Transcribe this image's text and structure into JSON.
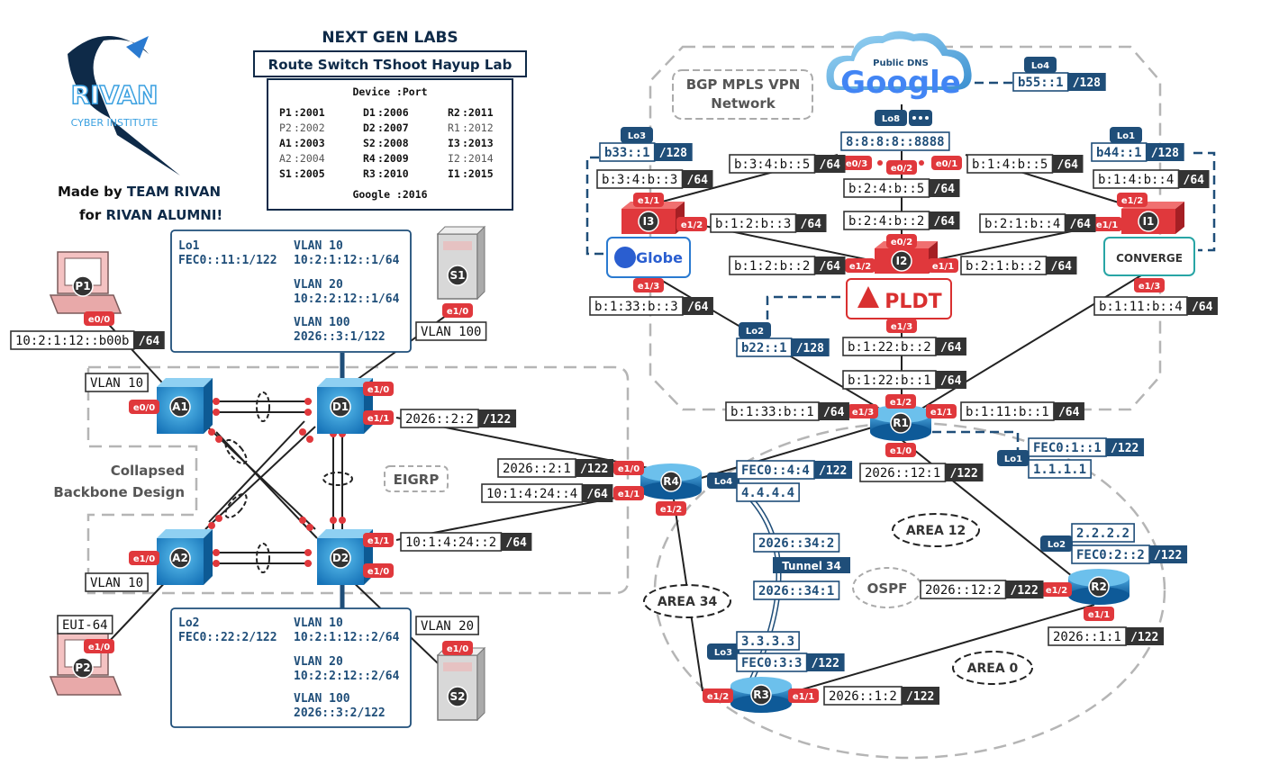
{
  "header": {
    "brand": "RIVAN",
    "brand_sub": "CYBER INSTITUTE",
    "lab_title": "NEXT GEN LABS",
    "lab_subtitle": "Route Switch TShoot Hayup Lab",
    "made_by_prefix": "Made by ",
    "made_by_team": "TEAM RIVAN",
    "for_prefix": "for ",
    "for_alumni": "RIVAN ALUMNI!"
  },
  "port_table": {
    "header": "Device :Port",
    "entries": [
      {
        "device": "P1",
        "port": ":2001"
      },
      {
        "device": "D1",
        "port": ":2006"
      },
      {
        "device": "R2",
        "port": ":2011"
      },
      {
        "device": "P2",
        "port": ":2002"
      },
      {
        "device": "D2",
        "port": ":2007"
      },
      {
        "device": "R1",
        "port": ":2012"
      },
      {
        "device": "A1",
        "port": ":2003"
      },
      {
        "device": "S2",
        "port": ":2008"
      },
      {
        "device": "I3",
        "port": ":2013"
      },
      {
        "device": "A2",
        "port": ":2004"
      },
      {
        "device": "R4",
        "port": ":2009"
      },
      {
        "device": "I2",
        "port": ":2014"
      },
      {
        "device": "S1",
        "port": ":2005"
      },
      {
        "device": "R3",
        "port": ":2010"
      },
      {
        "device": "I1",
        "port": ":2015"
      }
    ],
    "footer": "Google :2016"
  },
  "d1_info": {
    "lo_label": "Lo1",
    "lo_addr": "FEC0::11:1/122",
    "vlan10": "VLAN 10",
    "vlan10_addr": "10:2:1:12::1/64",
    "vlan20": "VLAN 20",
    "vlan20_addr": "10:2:2:12::1/64",
    "vlan100": "VLAN 100",
    "vlan100_addr": "2026::3:1/122"
  },
  "d2_info": {
    "lo_label": "Lo2",
    "lo_addr": "FEC0::22:2/122",
    "vlan10": "VLAN 10",
    "vlan10_addr": "10:2:1:12::2/64",
    "vlan20": "VLAN 20",
    "vlan20_addr": "10:2:2:12::2/64",
    "vlan100": "VLAN 100",
    "vlan100_addr": "2026::3:2/122"
  },
  "regions": {
    "bgp_line1": "BGP MPLS VPN",
    "bgp_line2": "Network",
    "collapsed_line1": "Collapsed",
    "collapsed_line2": "Backbone Design",
    "eigrp": "EIGRP",
    "ospf": "OSPF",
    "area12": "AREA 12",
    "area34": "AREA 34",
    "area0": "AREA 0",
    "tunnel": "Tunnel 34"
  },
  "logos": {
    "google_top": "Public DNS",
    "google": "Google",
    "globe": "Globe",
    "pldt": "PLDT",
    "converge": "CONVERGE"
  },
  "devices": [
    "P1",
    "P2",
    "S1",
    "S2",
    "A1",
    "A2",
    "D1",
    "D2",
    "R1",
    "R2",
    "R3",
    "R4",
    "I1",
    "I2",
    "I3"
  ],
  "interfaces": {
    "p1_e00": "e0/0",
    "p2_e10": "e1/0",
    "s1_e10": "e1/0",
    "s2_e10": "e1/0",
    "a1_e00": "e0/0",
    "a2_e10": "e1/0",
    "d1_e10": "e1/0",
    "d1_e11": "e1/1",
    "d2_e11": "e1/1",
    "d2_e10": "e1/0",
    "r4_e10": "e1/0",
    "r4_e11": "e1/1",
    "r4_e12": "e1/2",
    "r1_e12": "e1/2",
    "r1_e13": "e1/3",
    "r1_e11": "e1/1",
    "r1_e10": "e1/0",
    "r2_e12": "e1/2",
    "r2_e11": "e1/1",
    "r3_e12": "e1/2",
    "r3_e11": "e1/1",
    "i3_e11": "e1/1",
    "i3_e12": "e1/2",
    "i3_e13": "e1/3",
    "i2_e02": "e0/2",
    "i2_e12": "e1/2",
    "i2_e11": "e1/1",
    "i2_e13": "e1/3",
    "i1_e12": "e1/2",
    "i1_e11": "e1/1",
    "i1_e13": "e1/3",
    "g_e03": "e0/3",
    "g_e02": "e0/2",
    "g_e01": "e0/1"
  },
  "loopback_tags": {
    "lo3_i3": "Lo3",
    "lo8_g": "Lo8",
    "lo4_g": "Lo4",
    "lo1_i1": "Lo1",
    "lo2_i2": "Lo2",
    "lo4_r4": "Lo4",
    "lo1_r1": "Lo1",
    "lo2_r2": "Lo2",
    "lo3_r3": "Lo3"
  },
  "labels": {
    "p1_addr": "10:2:1:12::b00b",
    "p1_pref": "/64",
    "vlan10_a1": "VLAN 10",
    "vlan10_a2": "VLAN 10",
    "vlan100_s1": "VLAN 100",
    "vlan20_s2": "VLAN 20",
    "eui64": "EUI-64",
    "d1_wan": "2026::2:2",
    "d1_wan_pref": "/122",
    "d2_wan": "10:1:4:24::2",
    "d2_wan_pref": "/64",
    "r4_d1": "2026::2:1",
    "r4_d1_pref": "/122",
    "r4_d2": "10:1:4:24::4",
    "r4_d2_pref": "/64",
    "r4_lo_v6": "FEC0::4:4",
    "r4_lo_v6_pref": "/122",
    "r4_lo_v4": "4.4.4.4",
    "tun_r4": "2026::34:2",
    "tun_r3": "2026::34:1",
    "r3_lo_v4": "3.3.3.3",
    "r3_lo_v6": "FEC0:3:3",
    "r3_lo_v6_pref": "/122",
    "r3_r2": "2026::1:2",
    "r3_r2_pref": "/122",
    "r2_r3": "2026::1:1",
    "r2_r3_pref": "/122",
    "r2_lo_v4": "2.2.2.2",
    "r2_lo_v6": "FEC0:2::2",
    "r2_lo_v6_pref": "/122",
    "r2_r1": "2026::12:2",
    "r2_r1_pref": "/122",
    "r1_r2": "2026::12:1",
    "r1_r2_pref": "/122",
    "r1_lo_v6": "FEC0:1::1",
    "r1_lo_v6_pref": "/122",
    "r1_lo_v4": "1.1.1.1",
    "r1_i3": "b:1:33:b::1",
    "r1_i3_pref": "/64",
    "r1_i1": "b:1:11:b::1",
    "r1_i1_pref": "/64",
    "r1_i2": "b:1:22:b::1",
    "r1_i2_pref": "/64",
    "i2_r1": "b:1:22:b::2",
    "i2_r1_pref": "/64",
    "i3_r1": "b:1:33:b::3",
    "i3_r1_pref": "/64",
    "i1_r1": "b:1:11:b::4",
    "i1_r1_pref": "/64",
    "i3_lo": "b33::1",
    "i3_lo_pref": "/128",
    "i3_g": "b:3:4:b::3",
    "i3_g_pref": "/64",
    "g_i3": "b:3:4:b::5",
    "g_i3_pref": "/64",
    "g_lo": "8:8:8:8::8888",
    "g_lo4": "b55::1",
    "g_lo4_pref": "/128",
    "g_i2": "b:2:4:b::5",
    "g_i2_pref": "/64",
    "i2_g": "b:2:4:b::2",
    "i2_g_pref": "/64",
    "g_i1": "b:1:4:b::5",
    "g_i1_pref": "/64",
    "i1_g": "b:1:4:b::4",
    "i1_g_pref": "/64",
    "i1_lo": "b44::1",
    "i1_lo_pref": "/128",
    "i3_i2": "b:1:2:b::3",
    "i3_i2_pref": "/64",
    "i2_i3": "b:1:2:b::2",
    "i2_i3_pref": "/64",
    "i1_i2": "b:2:1:b::4",
    "i1_i2_pref": "/64",
    "i2_i1": "b:2:1:b::2",
    "i2_i1_pref": "/64",
    "i2_lo": "b22::1",
    "i2_lo_pref": "/128"
  },
  "colors": {
    "switch_blue": "#1e88c8",
    "router_blue": "#1473b5",
    "intf_red": "#e0383c",
    "label_dark": "#333333",
    "info_blue": "#1f4e79",
    "pc_pink": "#f4c2c2",
    "isp_red": "#d93030"
  }
}
